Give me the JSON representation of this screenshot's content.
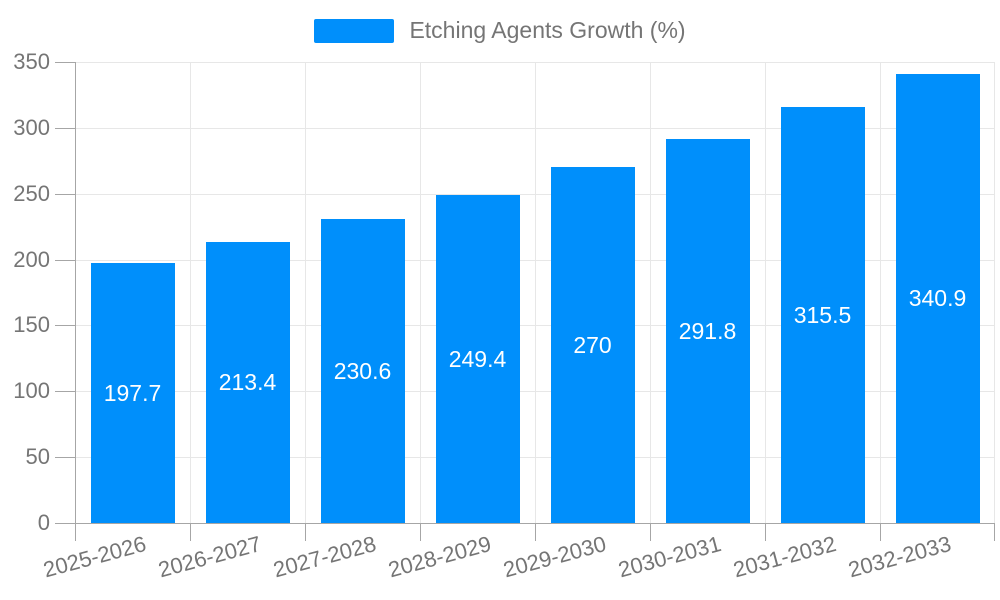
{
  "chart_data": {
    "type": "bar",
    "title": "Etching Agents Growth (%)",
    "legend": {
      "label": "Etching Agents Growth (%)",
      "position": "top"
    },
    "categories": [
      "2025-2026",
      "2026-2027",
      "2027-2028",
      "2028-2029",
      "2029-2030",
      "2030-2031",
      "2031-2032",
      "2032-2033"
    ],
    "series": [
      {
        "name": "Etching Agents Growth (%)",
        "values": [
          197.7,
          213.4,
          230.6,
          249.4,
          270,
          291.8,
          315.5,
          340.9
        ]
      }
    ],
    "xlabel": "",
    "ylabel": "",
    "ylim": [
      0,
      350
    ],
    "yticks": [
      0,
      50,
      100,
      150,
      200,
      250,
      300,
      350
    ],
    "grid": true,
    "x_label_rotation": -15,
    "bar_color": "#008FFB",
    "data_label_color": "#ffffff",
    "axis_label_color": "#757575",
    "grid_color": "#e7e7e7",
    "axis_line_color": "#a6a6a6"
  }
}
